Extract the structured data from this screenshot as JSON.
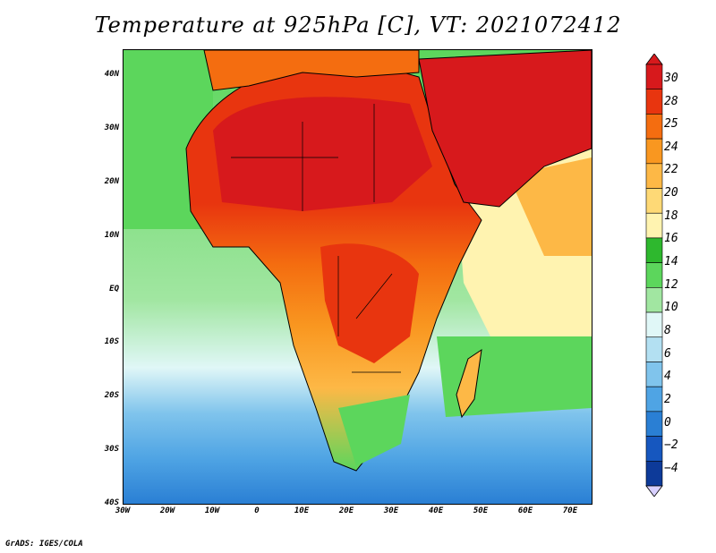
{
  "title": "Temperature at 925hPa [C], VT: 2021072412",
  "credit": "GrADS: IGES/COLA",
  "lat_labels": [
    "40N",
    "30N",
    "20N",
    "10N",
    "EQ",
    "10S",
    "20S",
    "30S",
    "40S"
  ],
  "lon_labels": [
    "30W",
    "20W",
    "10W",
    "0",
    "10E",
    "20E",
    "30E",
    "40E",
    "50E",
    "60E",
    "70E"
  ],
  "colorbar": {
    "labels": [
      "30",
      "28",
      "25",
      "24",
      "22",
      "20",
      "18",
      "16",
      "14",
      "12",
      "10",
      "8",
      "6",
      "4",
      "2",
      "0",
      "−2",
      "−4"
    ],
    "colors": [
      "#d7191c",
      "#e8350f",
      "#f46d10",
      "#f99720",
      "#fdb846",
      "#fed976",
      "#fff3b0",
      "#2eb82e",
      "#5cd65c",
      "#a1e6a1",
      "#e0f7f7",
      "#b3e0f2",
      "#80c4ec",
      "#4fa4e4",
      "#2a7fd4",
      "#1657bf",
      "#0d3a99",
      "#0a2a80",
      "#d8d0ff"
    ]
  }
}
